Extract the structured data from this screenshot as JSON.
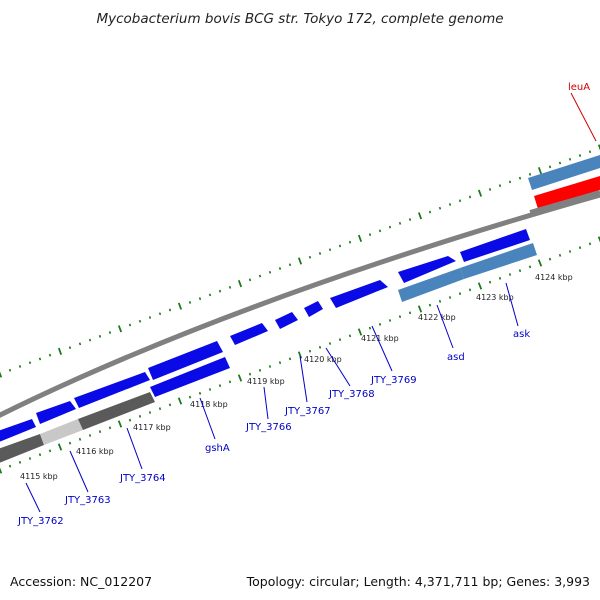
{
  "title": "Mycobacterium bovis BCG str. Tokyo 172, complete genome",
  "accession": "Accession: NC_012207",
  "topology": "Topology: circular; Length: 4,371,711 bp; Genes: 3,993",
  "colors": {
    "gene_blue": "#0a0ae6",
    "gene_steel": "#4a84bc",
    "gene_dark_gray": "#5a5a5a",
    "gene_light_gray": "#c8c8c8",
    "gene_red": "#ff0000",
    "tick_green": "#1a7a1a",
    "backbone": "#808080",
    "label_blue": "#0000c8",
    "label_red": "#d00000"
  },
  "ticks": [
    "4115 kbp",
    "4116 kbp",
    "4117 kbp",
    "4118 kbp",
    "4119 kbp",
    "4120 kbp",
    "4121 kbp",
    "4122 kbp",
    "4123 kbp",
    "4124 kbp"
  ],
  "genes": [
    {
      "label": "JTY_3762",
      "color": "label_blue"
    },
    {
      "label": "JTY_3763",
      "color": "label_blue"
    },
    {
      "label": "JTY_3764",
      "color": "label_blue"
    },
    {
      "label": "gshA",
      "color": "label_blue"
    },
    {
      "label": "JTY_3766",
      "color": "label_blue"
    },
    {
      "label": "JTY_3767",
      "color": "label_blue"
    },
    {
      "label": "JTY_3768",
      "color": "label_blue"
    },
    {
      "label": "JTY_3769",
      "color": "label_blue"
    },
    {
      "label": "asd",
      "color": "label_blue"
    },
    {
      "label": "ask",
      "color": "label_blue"
    },
    {
      "label": "leuA",
      "color": "label_red"
    }
  ]
}
